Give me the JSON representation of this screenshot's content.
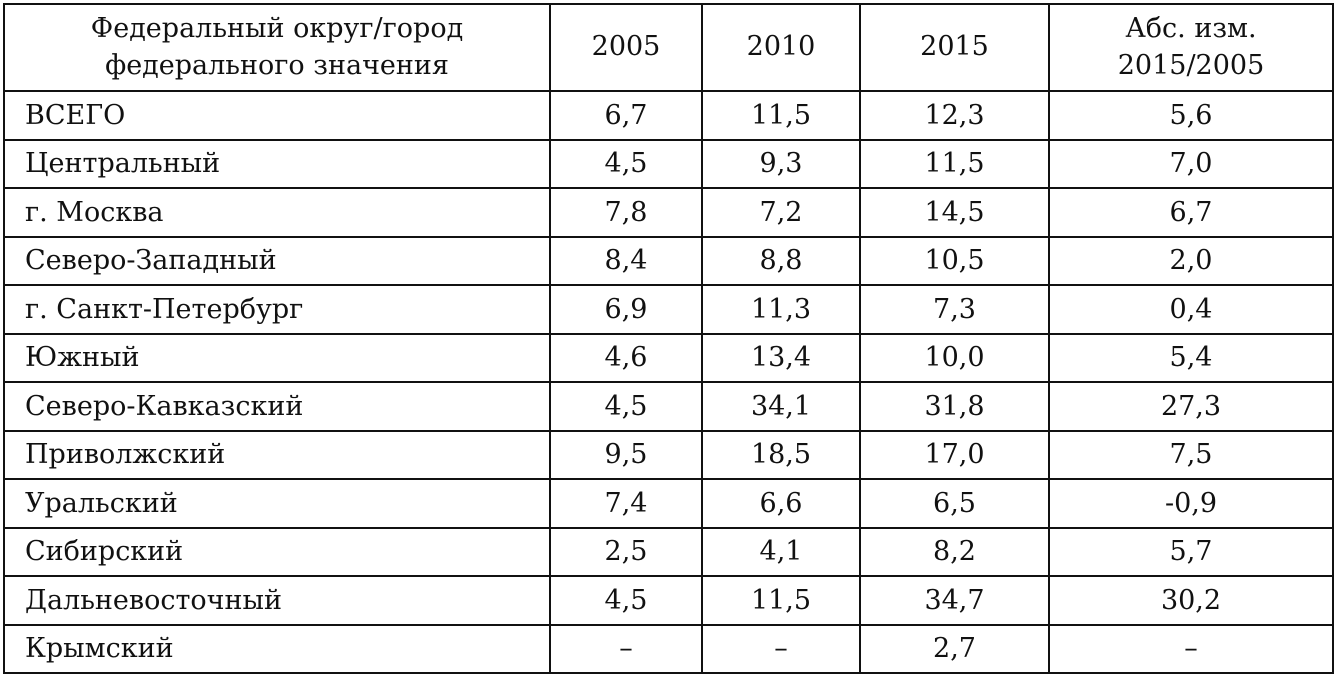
{
  "table": {
    "headers": [
      [
        "Федеральный округ/город",
        "федерального значения"
      ],
      [
        "2005"
      ],
      [
        "2010"
      ],
      [
        "2015"
      ],
      [
        "Абс. изм.",
        "2015/2005"
      ]
    ],
    "rows": [
      [
        "ВСЕГО",
        "6,7",
        "11,5",
        "12,3",
        "5,6"
      ],
      [
        "Центральный",
        "4,5",
        "9,3",
        "11,5",
        "7,0"
      ],
      [
        "г. Москва",
        "7,8",
        "7,2",
        "14,5",
        "6,7"
      ],
      [
        "Северо-Западный",
        "8,4",
        "8,8",
        "10,5",
        "2,0"
      ],
      [
        "г. Санкт-Петербург",
        "6,9",
        "11,3",
        "7,3",
        "0,4"
      ],
      [
        "Южный",
        "4,6",
        "13,4",
        "10,0",
        "5,4"
      ],
      [
        "Северо-Кавказский",
        "4,5",
        "34,1",
        "31,8",
        "27,3"
      ],
      [
        "Приволжский",
        "9,5",
        "18,5",
        "17,0",
        "7,5"
      ],
      [
        "Уральский",
        "7,4",
        "6,6",
        "6,5",
        "-0,9"
      ],
      [
        "Сибирский",
        "2,5",
        "4,1",
        "8,2",
        "5,7"
      ],
      [
        "Дальневосточный",
        "4,5",
        "11,5",
        "34,7",
        "30,2"
      ],
      [
        "Крымский",
        "–",
        "–",
        "2,7",
        "–"
      ]
    ]
  }
}
